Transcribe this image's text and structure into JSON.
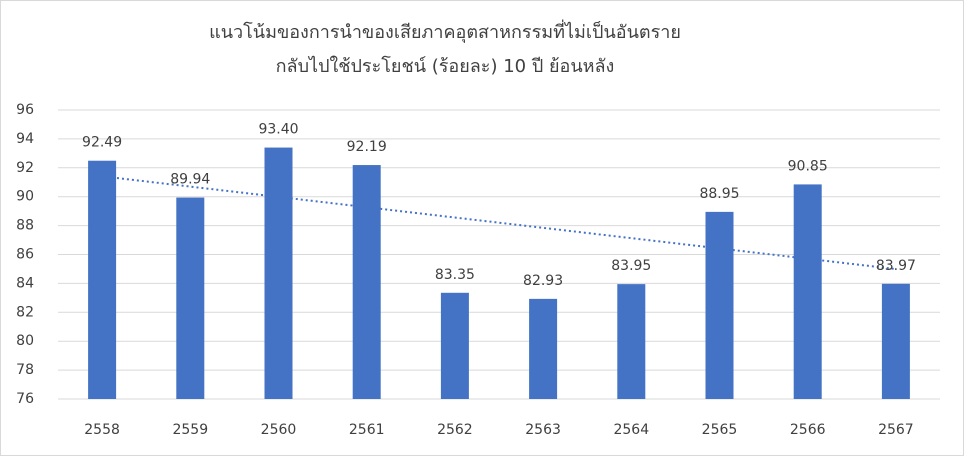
{
  "chart_data": {
    "type": "bar",
    "title_lines": [
      "แนวโน้มของการนำของเสียภาคอุตสาหกรรมที่ไม่เป็นอันตราย",
      "กลับไปใช้ประโยชน์ (ร้อยละ) 10 ปี ย้อนหลัง"
    ],
    "categories": [
      "2558",
      "2559",
      "2560",
      "2561",
      "2562",
      "2563",
      "2564",
      "2565",
      "2566",
      "2567"
    ],
    "values": [
      92.49,
      89.94,
      93.4,
      92.19,
      83.35,
      82.93,
      83.95,
      88.95,
      90.85,
      83.97
    ],
    "value_labels": [
      "92.49",
      "89.94",
      "93.40",
      "92.19",
      "83.35",
      "82.93",
      "83.95",
      "88.95",
      "90.85",
      "83.97"
    ],
    "color": "#4472c4",
    "ylim": [
      76,
      96
    ],
    "yticks": [
      76,
      78,
      80,
      82,
      84,
      86,
      88,
      90,
      92,
      94,
      96
    ],
    "grid": true,
    "trendline": "linear",
    "trendline_color": "#4472c4"
  }
}
